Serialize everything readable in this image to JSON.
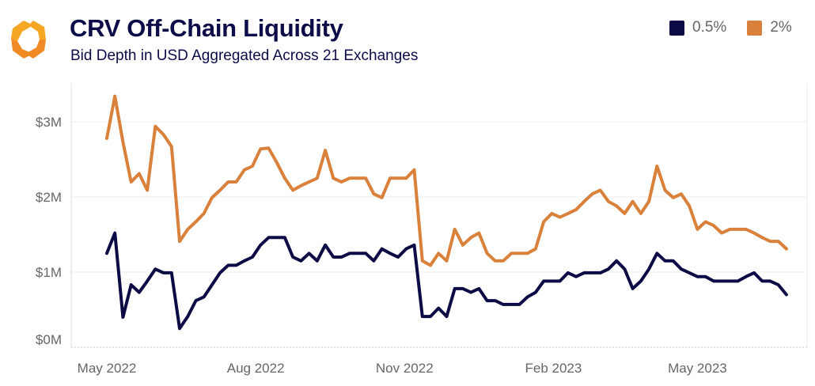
{
  "header": {
    "title": "CRV Off-Chain Liquidity",
    "subtitle": "Bid Depth in USD Aggregated Across 21 Exchanges",
    "logo": "orange-hexagon-logo"
  },
  "chart_data": {
    "type": "line",
    "title": "CRV Off-Chain Liquidity",
    "subtitle": "Bid Depth in USD Aggregated Across 21 Exchanges",
    "xlabel": "",
    "ylabel": "",
    "ylim": [
      0,
      3.2
    ],
    "y_unit": "USD millions",
    "y_ticks": [
      {
        "value": 0,
        "label": "$0M"
      },
      {
        "value": 1,
        "label": "$1M"
      },
      {
        "value": 2,
        "label": "$2M"
      },
      {
        "value": 3,
        "label": "$3M"
      }
    ],
    "x_ticks": [
      {
        "date": "2022-05-01",
        "label": "May 2022"
      },
      {
        "date": "2022-08-01",
        "label": "Aug 2022"
      },
      {
        "date": "2022-11-01",
        "label": "Nov 2022"
      },
      {
        "date": "2023-02-01",
        "label": "Feb 2023"
      },
      {
        "date": "2023-05-01",
        "label": "May 2023"
      }
    ],
    "grid": "horizontal",
    "legend_position": "top-right",
    "dates": [
      "2022-05-01",
      "2022-05-06",
      "2022-05-11",
      "2022-05-16",
      "2022-05-21",
      "2022-05-26",
      "2022-05-31",
      "2022-06-05",
      "2022-06-10",
      "2022-06-15",
      "2022-06-20",
      "2022-06-25",
      "2022-06-30",
      "2022-07-05",
      "2022-07-10",
      "2022-07-15",
      "2022-07-20",
      "2022-07-25",
      "2022-07-30",
      "2022-08-04",
      "2022-08-09",
      "2022-08-14",
      "2022-08-19",
      "2022-08-24",
      "2022-08-29",
      "2022-09-03",
      "2022-09-08",
      "2022-09-13",
      "2022-09-18",
      "2022-09-23",
      "2022-09-28",
      "2022-10-03",
      "2022-10-08",
      "2022-10-13",
      "2022-10-18",
      "2022-10-23",
      "2022-10-28",
      "2022-11-02",
      "2022-11-07",
      "2022-11-12",
      "2022-11-17",
      "2022-11-22",
      "2022-11-27",
      "2022-12-02",
      "2022-12-07",
      "2022-12-12",
      "2022-12-17",
      "2022-12-22",
      "2022-12-27",
      "2023-01-01",
      "2023-01-06",
      "2023-01-11",
      "2023-01-16",
      "2023-01-21",
      "2023-01-26",
      "2023-01-31",
      "2023-02-05",
      "2023-02-10",
      "2023-02-15",
      "2023-02-20",
      "2023-02-25",
      "2023-03-02",
      "2023-03-07",
      "2023-03-12",
      "2023-03-17",
      "2023-03-22",
      "2023-03-27",
      "2023-04-01",
      "2023-04-06",
      "2023-04-11",
      "2023-04-16",
      "2023-04-21",
      "2023-04-26",
      "2023-05-01",
      "2023-05-06",
      "2023-05-11",
      "2023-05-16",
      "2023-05-21",
      "2023-05-26",
      "2023-05-31",
      "2023-06-05",
      "2023-06-10",
      "2023-06-15",
      "2023-06-20",
      "2023-06-25"
    ],
    "series": [
      {
        "name": "0.5%",
        "color": "#0c0b45",
        "values": [
          1.25,
          1.52,
          0.4,
          0.83,
          0.73,
          0.88,
          1.04,
          0.99,
          0.99,
          0.25,
          0.41,
          0.62,
          0.67,
          0.83,
          0.99,
          1.09,
          1.09,
          1.15,
          1.2,
          1.36,
          1.46,
          1.46,
          1.46,
          1.2,
          1.15,
          1.25,
          1.15,
          1.36,
          1.2,
          1.2,
          1.25,
          1.25,
          1.25,
          1.15,
          1.31,
          1.25,
          1.2,
          1.31,
          1.36,
          0.41,
          0.41,
          0.52,
          0.41,
          0.78,
          0.78,
          0.73,
          0.78,
          0.62,
          0.62,
          0.57,
          0.57,
          0.57,
          0.67,
          0.73,
          0.88,
          0.88,
          0.88,
          0.99,
          0.94,
          0.99,
          0.99,
          0.99,
          1.04,
          1.15,
          1.04,
          0.78,
          0.88,
          1.04,
          1.25,
          1.15,
          1.15,
          1.04,
          0.99,
          0.94,
          0.94,
          0.88,
          0.88,
          0.88,
          0.88,
          0.94,
          0.99,
          0.88,
          0.88,
          0.83,
          0.7
        ]
      },
      {
        "name": "2%",
        "color": "#d9803a",
        "values": [
          2.78,
          3.34,
          2.73,
          2.2,
          2.31,
          2.09,
          2.94,
          2.83,
          2.67,
          1.41,
          1.57,
          1.67,
          1.78,
          1.99,
          2.09,
          2.2,
          2.2,
          2.36,
          2.41,
          2.64,
          2.65,
          2.46,
          2.25,
          2.09,
          2.15,
          2.2,
          2.25,
          2.62,
          2.25,
          2.2,
          2.25,
          2.25,
          2.25,
          2.04,
          1.99,
          2.25,
          2.25,
          2.25,
          2.36,
          1.15,
          1.09,
          1.25,
          1.15,
          1.57,
          1.36,
          1.46,
          1.52,
          1.25,
          1.15,
          1.15,
          1.25,
          1.25,
          1.25,
          1.31,
          1.67,
          1.78,
          1.73,
          1.78,
          1.83,
          1.94,
          2.04,
          2.09,
          1.94,
          1.88,
          1.78,
          1.94,
          1.78,
          1.94,
          2.41,
          2.09,
          1.99,
          2.04,
          1.88,
          1.57,
          1.67,
          1.62,
          1.52,
          1.57,
          1.57,
          1.57,
          1.52,
          1.46,
          1.41,
          1.41,
          1.31
        ]
      }
    ]
  }
}
